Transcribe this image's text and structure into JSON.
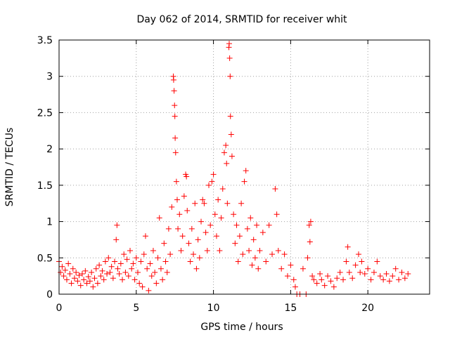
{
  "chart_data": {
    "type": "scatter",
    "title": "Day 062 of 2014, SRMTID for receiver whit",
    "xlabel": "GPS time / hours",
    "ylabel": "SRMTID / TECUs",
    "xlim": [
      0,
      24
    ],
    "ylim": [
      0,
      3.5
    ],
    "xticks": [
      0,
      5,
      10,
      15,
      20
    ],
    "xtick_labels": [
      "0",
      "5",
      "10",
      "15",
      "20"
    ],
    "yticks": [
      0,
      0.5,
      1,
      1.5,
      2,
      2.5,
      3,
      3.5
    ],
    "ytick_labels": [
      "0",
      "0.5",
      "1",
      "1.5",
      "2",
      "2.5",
      "3",
      "3.5"
    ],
    "grid": true,
    "marker": "+",
    "color": "#ff0000",
    "series": [
      {
        "name": "SRMTID",
        "points": [
          [
            0.0,
            0.45
          ],
          [
            0.1,
            0.3
          ],
          [
            0.2,
            0.38
          ],
          [
            0.3,
            0.25
          ],
          [
            0.4,
            0.33
          ],
          [
            0.5,
            0.2
          ],
          [
            0.6,
            0.42
          ],
          [
            0.7,
            0.28
          ],
          [
            0.8,
            0.15
          ],
          [
            0.9,
            0.35
          ],
          [
            1.0,
            0.22
          ],
          [
            1.1,
            0.3
          ],
          [
            1.2,
            0.18
          ],
          [
            1.3,
            0.26
          ],
          [
            1.4,
            0.12
          ],
          [
            1.5,
            0.28
          ],
          [
            1.6,
            0.2
          ],
          [
            1.7,
            0.32
          ],
          [
            1.8,
            0.15
          ],
          [
            1.9,
            0.24
          ],
          [
            2.0,
            0.18
          ],
          [
            2.1,
            0.3
          ],
          [
            2.2,
            0.1
          ],
          [
            2.3,
            0.22
          ],
          [
            2.4,
            0.35
          ],
          [
            2.5,
            0.15
          ],
          [
            2.6,
            0.4
          ],
          [
            2.7,
            0.25
          ],
          [
            2.8,
            0.32
          ],
          [
            2.9,
            0.2
          ],
          [
            3.0,
            0.45
          ],
          [
            3.1,
            0.28
          ],
          [
            3.2,
            0.5
          ],
          [
            3.3,
            0.3
          ],
          [
            3.4,
            0.38
          ],
          [
            3.5,
            0.22
          ],
          [
            3.6,
            0.45
          ],
          [
            3.7,
            0.75
          ],
          [
            3.75,
            0.95
          ],
          [
            3.8,
            0.35
          ],
          [
            3.9,
            0.28
          ],
          [
            4.0,
            0.42
          ],
          [
            4.1,
            0.2
          ],
          [
            4.2,
            0.55
          ],
          [
            4.3,
            0.3
          ],
          [
            4.4,
            0.48
          ],
          [
            4.5,
            0.25
          ],
          [
            4.6,
            0.6
          ],
          [
            4.7,
            0.35
          ],
          [
            4.8,
            0.42
          ],
          [
            4.9,
            0.2
          ],
          [
            5.0,
            0.5
          ],
          [
            5.1,
            0.3
          ],
          [
            5.2,
            0.15
          ],
          [
            5.3,
            0.45
          ],
          [
            5.4,
            0.1
          ],
          [
            5.5,
            0.55
          ],
          [
            5.6,
            0.8
          ],
          [
            5.7,
            0.35
          ],
          [
            5.8,
            0.05
          ],
          [
            5.9,
            0.42
          ],
          [
            6.0,
            0.25
          ],
          [
            6.1,
            0.6
          ],
          [
            6.2,
            0.3
          ],
          [
            6.3,
            0.15
          ],
          [
            6.4,
            0.5
          ],
          [
            6.5,
            1.05
          ],
          [
            6.6,
            0.35
          ],
          [
            6.7,
            0.2
          ],
          [
            6.8,
            0.7
          ],
          [
            6.9,
            0.45
          ],
          [
            7.0,
            0.3
          ],
          [
            7.1,
            0.9
          ],
          [
            7.2,
            0.55
          ],
          [
            7.3,
            1.2
          ],
          [
            7.4,
            3.0
          ],
          [
            7.42,
            2.95
          ],
          [
            7.45,
            2.8
          ],
          [
            7.48,
            2.6
          ],
          [
            7.5,
            2.45
          ],
          [
            7.52,
            2.15
          ],
          [
            7.55,
            1.95
          ],
          [
            7.6,
            1.55
          ],
          [
            7.65,
            1.3
          ],
          [
            7.7,
            0.9
          ],
          [
            7.8,
            1.1
          ],
          [
            7.9,
            0.6
          ],
          [
            8.0,
            0.8
          ],
          [
            8.1,
            1.35
          ],
          [
            8.2,
            1.65
          ],
          [
            8.25,
            1.62
          ],
          [
            8.3,
            1.15
          ],
          [
            8.4,
            0.7
          ],
          [
            8.5,
            0.45
          ],
          [
            8.6,
            0.9
          ],
          [
            8.7,
            0.55
          ],
          [
            8.8,
            1.25
          ],
          [
            8.9,
            0.35
          ],
          [
            9.0,
            0.75
          ],
          [
            9.1,
            0.5
          ],
          [
            9.2,
            1.0
          ],
          [
            9.3,
            1.3
          ],
          [
            9.4,
            1.25
          ],
          [
            9.5,
            0.85
          ],
          [
            9.6,
            0.6
          ],
          [
            9.7,
            1.5
          ],
          [
            9.8,
            0.95
          ],
          [
            9.9,
            1.55
          ],
          [
            10.0,
            1.65
          ],
          [
            10.1,
            1.1
          ],
          [
            10.2,
            0.8
          ],
          [
            10.3,
            1.3
          ],
          [
            10.4,
            0.6
          ],
          [
            10.5,
            1.05
          ],
          [
            10.6,
            1.45
          ],
          [
            10.7,
            1.95
          ],
          [
            10.8,
            2.05
          ],
          [
            10.85,
            1.8
          ],
          [
            10.9,
            1.25
          ],
          [
            11.0,
            3.4
          ],
          [
            11.02,
            3.45
          ],
          [
            11.05,
            3.25
          ],
          [
            11.08,
            3.0
          ],
          [
            11.1,
            2.45
          ],
          [
            11.15,
            2.2
          ],
          [
            11.2,
            1.9
          ],
          [
            11.3,
            1.1
          ],
          [
            11.4,
            0.7
          ],
          [
            11.5,
            0.95
          ],
          [
            11.6,
            0.45
          ],
          [
            11.7,
            0.8
          ],
          [
            11.8,
            1.25
          ],
          [
            11.9,
            0.55
          ],
          [
            12.0,
            1.55
          ],
          [
            12.1,
            1.7
          ],
          [
            12.2,
            0.9
          ],
          [
            12.3,
            0.6
          ],
          [
            12.4,
            1.05
          ],
          [
            12.5,
            0.4
          ],
          [
            12.6,
            0.75
          ],
          [
            12.7,
            0.5
          ],
          [
            12.8,
            0.95
          ],
          [
            12.9,
            0.35
          ],
          [
            13.0,
            0.6
          ],
          [
            13.2,
            0.85
          ],
          [
            13.4,
            0.45
          ],
          [
            13.6,
            0.95
          ],
          [
            13.8,
            0.55
          ],
          [
            14.0,
            1.45
          ],
          [
            14.1,
            1.1
          ],
          [
            14.2,
            0.6
          ],
          [
            14.4,
            0.35
          ],
          [
            14.6,
            0.55
          ],
          [
            14.8,
            0.25
          ],
          [
            15.0,
            0.4
          ],
          [
            15.2,
            0.2
          ],
          [
            15.3,
            0.1
          ],
          [
            15.4,
            0.0
          ],
          [
            15.6,
            0.0
          ],
          [
            15.8,
            0.35
          ],
          [
            16.0,
            0.0
          ],
          [
            16.1,
            0.5
          ],
          [
            16.2,
            0.95
          ],
          [
            16.25,
            0.72
          ],
          [
            16.3,
            1.0
          ],
          [
            16.4,
            0.25
          ],
          [
            16.5,
            0.2
          ],
          [
            16.7,
            0.15
          ],
          [
            16.9,
            0.28
          ],
          [
            17.0,
            0.2
          ],
          [
            17.2,
            0.12
          ],
          [
            17.4,
            0.25
          ],
          [
            17.6,
            0.18
          ],
          [
            17.8,
            0.1
          ],
          [
            18.0,
            0.22
          ],
          [
            18.2,
            0.3
          ],
          [
            18.4,
            0.2
          ],
          [
            18.6,
            0.45
          ],
          [
            18.7,
            0.65
          ],
          [
            18.8,
            0.3
          ],
          [
            19.0,
            0.22
          ],
          [
            19.2,
            0.4
          ],
          [
            19.4,
            0.55
          ],
          [
            19.5,
            0.3
          ],
          [
            19.6,
            0.45
          ],
          [
            19.8,
            0.28
          ],
          [
            20.0,
            0.35
          ],
          [
            20.2,
            0.2
          ],
          [
            20.4,
            0.3
          ],
          [
            20.6,
            0.45
          ],
          [
            20.8,
            0.25
          ],
          [
            21.0,
            0.2
          ],
          [
            21.2,
            0.28
          ],
          [
            21.4,
            0.18
          ],
          [
            21.6,
            0.25
          ],
          [
            21.8,
            0.35
          ],
          [
            22.0,
            0.2
          ],
          [
            22.2,
            0.3
          ],
          [
            22.4,
            0.22
          ],
          [
            22.6,
            0.28
          ]
        ]
      }
    ]
  }
}
